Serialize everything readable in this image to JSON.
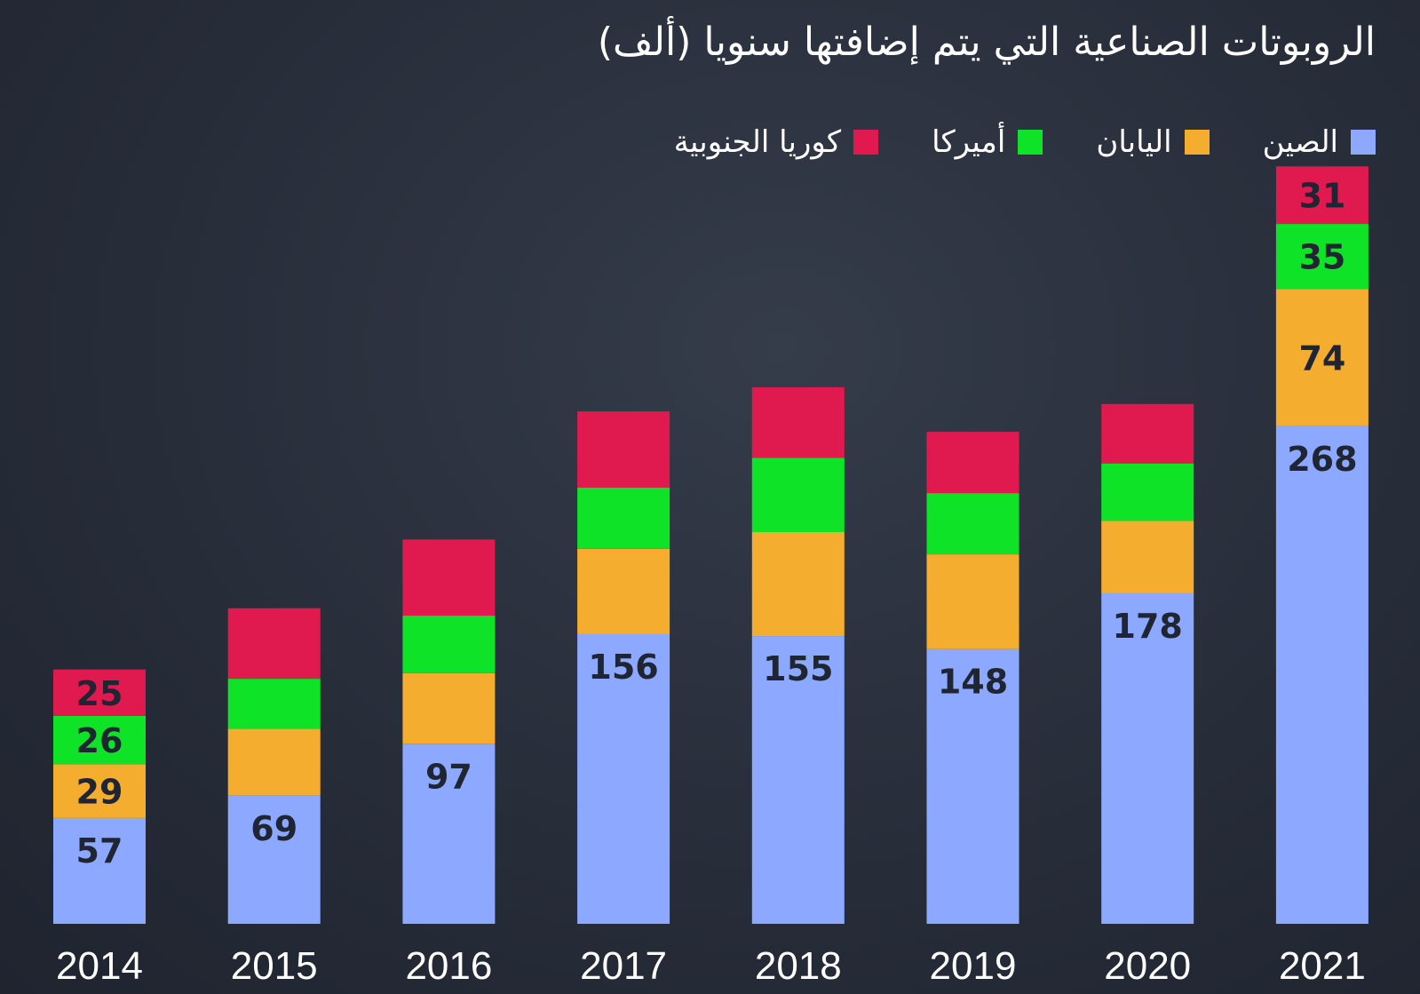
{
  "chart_data": {
    "type": "bar",
    "stacked": true,
    "title": "الروبوتات الصناعية التي يتم إضافتها سنويا (ألف)",
    "xlabel": "",
    "ylabel": "",
    "categories": [
      "2014",
      "2015",
      "2016",
      "2017",
      "2018",
      "2019",
      "2020",
      "2021"
    ],
    "series": [
      {
        "name": "الصين",
        "color": "#8ca8ff",
        "values": [
          57,
          69,
          97,
          156,
          155,
          148,
          178,
          268
        ],
        "labeled": [
          true,
          true,
          true,
          true,
          true,
          true,
          true,
          true
        ]
      },
      {
        "name": "اليابان",
        "color": "#f4ad2f",
        "values": [
          29,
          36,
          38,
          46,
          56,
          51,
          39,
          74
        ],
        "labeled": [
          true,
          false,
          false,
          false,
          false,
          false,
          false,
          true
        ]
      },
      {
        "name": "أميركا",
        "color": "#0ee327",
        "values": [
          26,
          27,
          31,
          33,
          40,
          33,
          31,
          35
        ],
        "labeled": [
          true,
          false,
          false,
          false,
          false,
          false,
          false,
          true
        ]
      },
      {
        "name": "كوريا الجنوبية",
        "color": "#e01a4f",
        "values": [
          25,
          38,
          41,
          41,
          38,
          33,
          32,
          31
        ],
        "labeled": [
          true,
          false,
          false,
          false,
          false,
          false,
          false,
          true
        ]
      }
    ],
    "legend_position": "top-right",
    "grid": false
  }
}
